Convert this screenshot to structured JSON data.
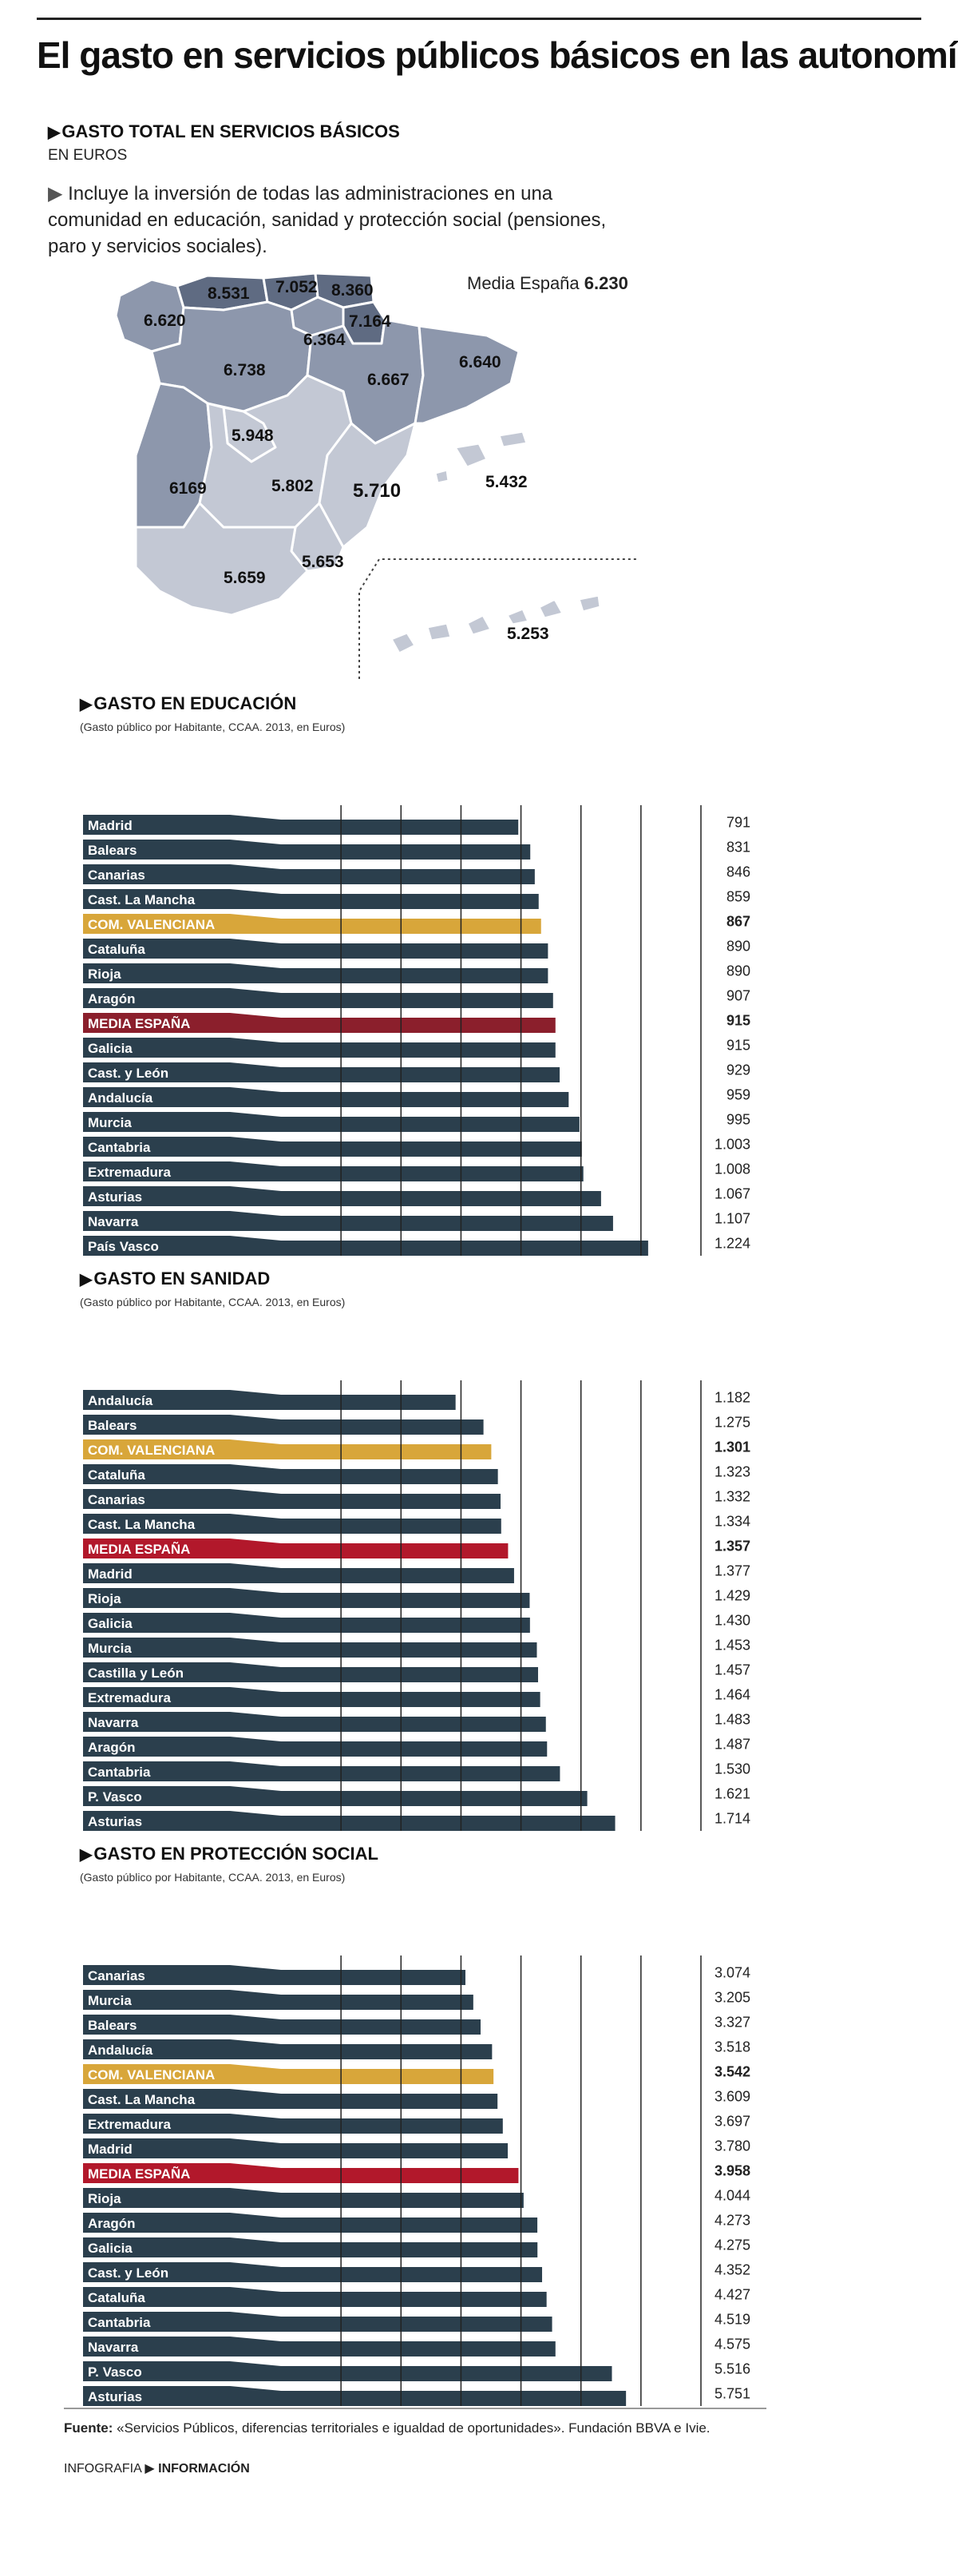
{
  "title": "El gasto en servicios públicos básicos en las autonomías",
  "map": {
    "heading": "GASTO TOTAL EN SERVICIOS BÁSICOS",
    "unit": "EN EUROS",
    "description": "Incluye la inversión de todas las administraciones en una comunidad en educación, sanidad y protección social (pensiones, paro y servicios sociales).",
    "media_label": "Media España",
    "media_value": "6.230",
    "regions": [
      {
        "name": "Galicia",
        "value": "6.620"
      },
      {
        "name": "Asturias",
        "value": "8.531"
      },
      {
        "name": "Cantabria",
        "value": "7.052"
      },
      {
        "name": "País Vasco",
        "value": "8.360"
      },
      {
        "name": "Navarra",
        "value": "7.164"
      },
      {
        "name": "La Rioja",
        "value": "6.364"
      },
      {
        "name": "Castilla y León",
        "value": "6.738"
      },
      {
        "name": "Aragón",
        "value": "6.667"
      },
      {
        "name": "Cataluña",
        "value": "6.640"
      },
      {
        "name": "Madrid",
        "value": "5.948"
      },
      {
        "name": "Extremadura",
        "value": "6169"
      },
      {
        "name": "Castilla-La Mancha",
        "value": "5.802"
      },
      {
        "name": "Com. Valenciana",
        "value": "5.710"
      },
      {
        "name": "Baleares",
        "value": "5.432"
      },
      {
        "name": "Andalucía",
        "value": "5.659"
      },
      {
        "name": "Murcia",
        "value": "5.653"
      },
      {
        "name": "Canarias",
        "value": "5.253"
      }
    ]
  },
  "colors": {
    "bar": "#2b3f4d",
    "valenciana": "#d8a63a",
    "media_edu": "#8b1f2c",
    "media": "#b2182b",
    "grid": "#222222",
    "map_dark": "#5f6b82",
    "map_mid": "#8d97ac",
    "map_light": "#c3c8d4"
  },
  "chart_data": [
    {
      "type": "bar",
      "title": "GASTO EN EDUCACIÓN",
      "subtitle": "(Gasto público por Habitante, CCAA. 2013, en Euros)",
      "categories": [
        "Madrid",
        "Balears",
        "Canarias",
        "Cast. La Mancha",
        "COM. VALENCIANA",
        "Cataluña",
        "Rioja",
        "Aragón",
        "MEDIA ESPAÑA",
        "Galicia",
        "Cast. y León",
        "Andalucía",
        "Murcia",
        "Cantabria",
        "Extremadura",
        "Asturias",
        "Navarra",
        "País Vasco"
      ],
      "values": [
        791,
        831,
        846,
        859,
        867,
        890,
        890,
        907,
        915,
        915,
        929,
        959,
        995,
        1003,
        1008,
        1067,
        1107,
        1224
      ],
      "value_labels": [
        "791",
        "831",
        "846",
        "859",
        "867",
        "890",
        "890",
        "907",
        "915",
        "915",
        "929",
        "959",
        "995",
        "1.003",
        "1.008",
        "1.067",
        "1.107",
        "1.224"
      ],
      "highlight": {
        "COM. VALENCIANA": "valenciana",
        "MEDIA ESPAÑA": "media_edu"
      },
      "xlim": [
        0,
        1400
      ],
      "ticks": [
        0,
        200,
        400,
        600,
        800,
        1000,
        1200,
        1400
      ]
    },
    {
      "type": "bar",
      "title": "GASTO EN SANIDAD",
      "subtitle": "(Gasto público por Habitante, CCAA. 2013, en Euros)",
      "categories": [
        "Andalucía",
        "Balears",
        "COM. VALENCIANA",
        "Cataluña",
        "Canarias",
        "Cast. La Mancha",
        "MEDIA ESPAÑA",
        "Madrid",
        "Rioja",
        "Galicia",
        "Murcia",
        "Castilla y León",
        "Extremadura",
        "Navarra",
        "Aragón",
        "Cantabria",
        "P. Vasco",
        "Asturias"
      ],
      "values": [
        1182,
        1275,
        1301,
        1323,
        1332,
        1334,
        1357,
        1377,
        1429,
        1430,
        1453,
        1457,
        1464,
        1483,
        1487,
        1530,
        1621,
        1714
      ],
      "value_labels": [
        "1.182",
        "1.275",
        "1.301",
        "1.323",
        "1.332",
        "1.334",
        "1.357",
        "1.377",
        "1.429",
        "1.430",
        "1.453",
        "1.457",
        "1.464",
        "1.483",
        "1.487",
        "1.530",
        "1.621",
        "1.714"
      ],
      "highlight": {
        "COM. VALENCIANA": "valenciana",
        "MEDIA ESPAÑA": "media"
      },
      "xlim": [
        600,
        2000
      ],
      "ticks": [
        600,
        800,
        1000,
        1200,
        1400,
        1600,
        1800,
        2000
      ]
    },
    {
      "type": "bar",
      "title": "GASTO EN PROTECCIÓN SOCIAL",
      "subtitle": "(Gasto público por Habitante, CCAA. 2013, en Euros)",
      "categories": [
        "Canarias",
        "Murcia",
        "Balears",
        "Andalucía",
        "COM. VALENCIANA",
        "Cast. La Mancha",
        "Extremadura",
        "Madrid",
        "MEDIA ESPAÑA",
        "Rioja",
        "Aragón",
        "Galicia",
        "Cast. y León",
        "Cataluña",
        "Cantabria",
        "Navarra",
        "P. Vasco",
        "Asturias"
      ],
      "values": [
        3074,
        3205,
        3327,
        3518,
        3542,
        3609,
        3697,
        3780,
        3958,
        4044,
        4273,
        4275,
        4352,
        4427,
        4519,
        4575,
        5516,
        5751
      ],
      "value_labels": [
        "3.074",
        "3.205",
        "3.327",
        "3.518",
        "3.542",
        "3.609",
        "3.697",
        "3.780",
        "3.958",
        "4.044",
        "4.273",
        "4.275",
        "4.352",
        "4.427",
        "4.519",
        "4.575",
        "5.516",
        "5.751"
      ],
      "highlight": {
        "COM. VALENCIANA": "valenciana",
        "MEDIA ESPAÑA": "media"
      },
      "xlim": [
        0,
        7000
      ],
      "ticks": [
        0,
        1000,
        2000,
        3000,
        4000,
        5000,
        6000,
        7000
      ]
    }
  ],
  "footer": {
    "source_label": "Fuente:",
    "source_text": "«Servicios Públicos, diferencias territoriales e igualdad de oportunidades». Fundación BBVA e Ivie.",
    "credit_left": "INFOGRAFIA",
    "credit_right": "INFORMACIÓN"
  }
}
